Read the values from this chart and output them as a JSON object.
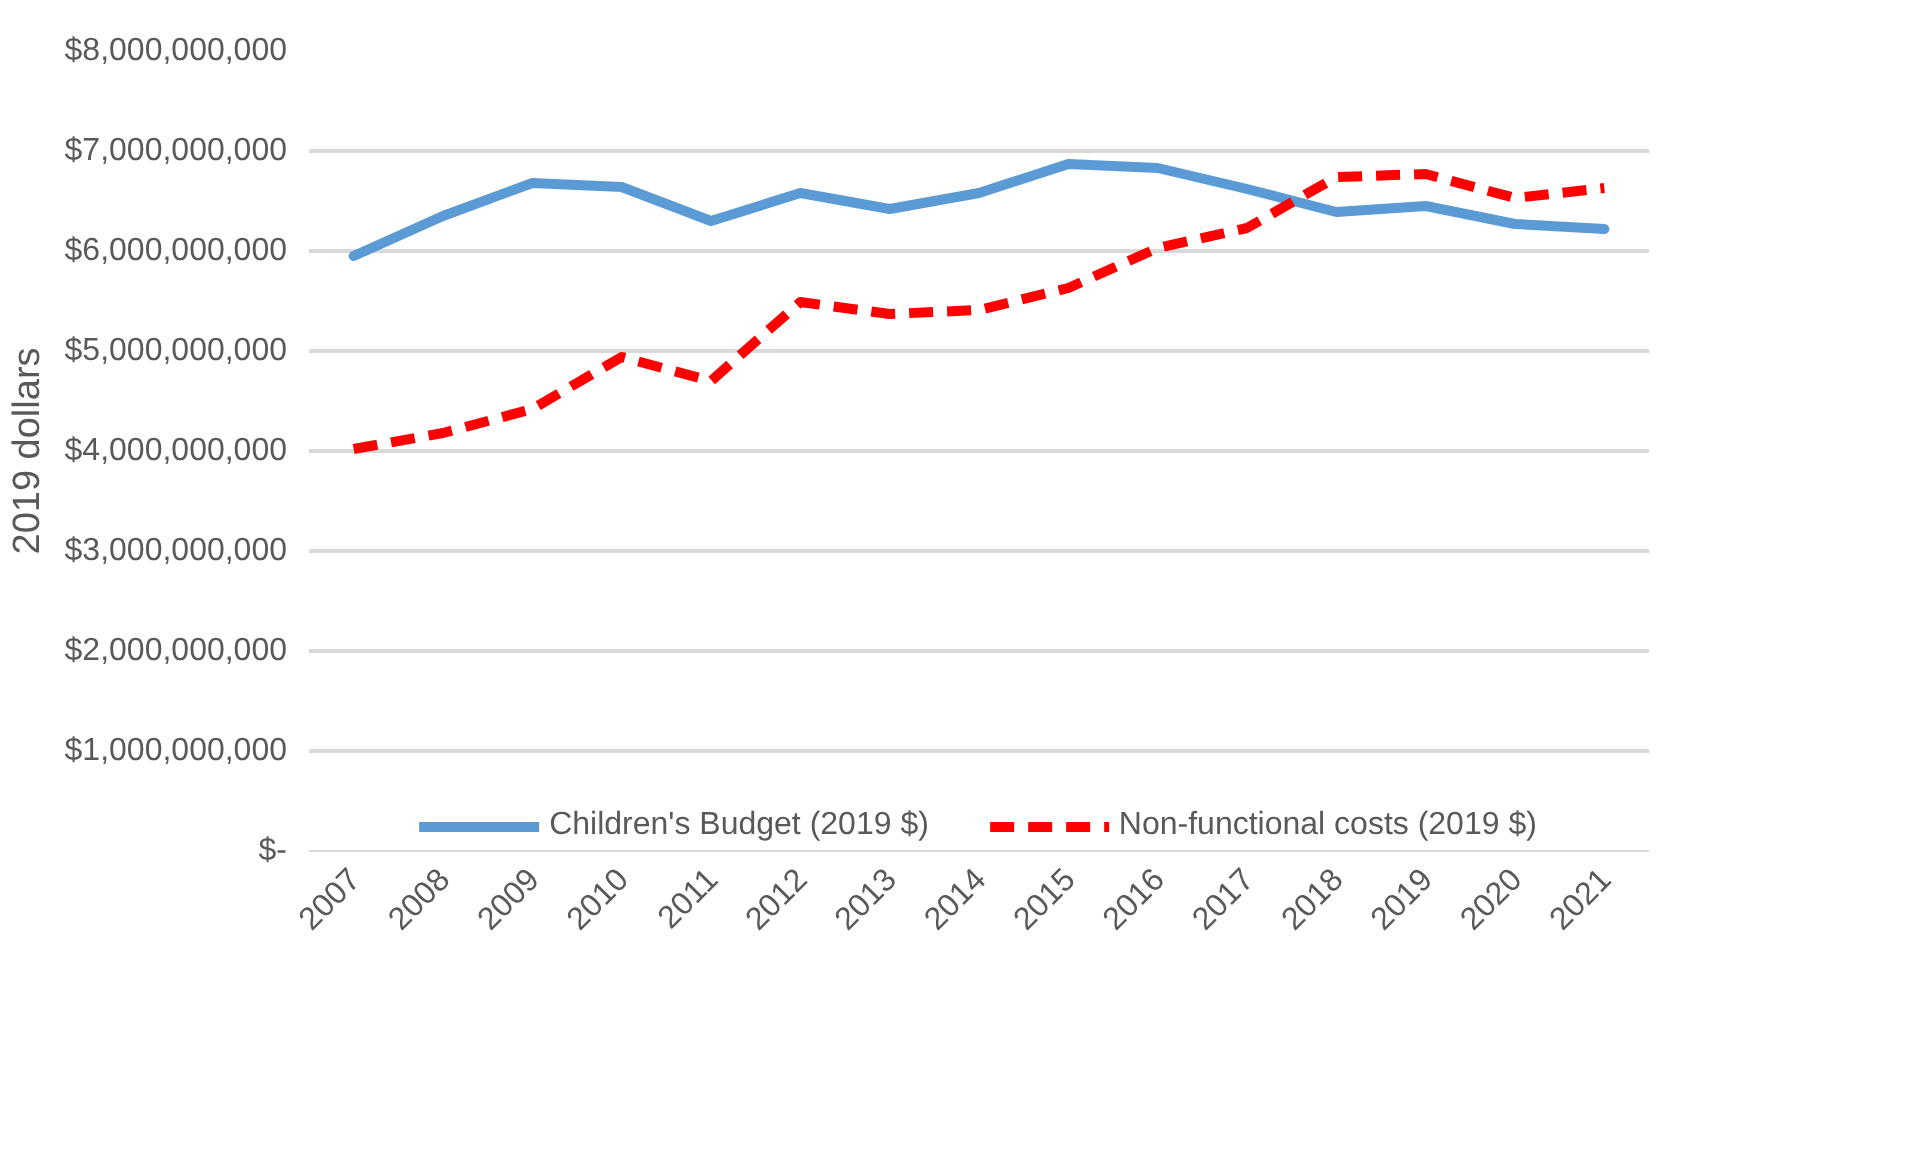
{
  "chart_data": {
    "type": "line",
    "ylabel": "2019 dollars",
    "categories": [
      "2007",
      "2008",
      "2009",
      "2010",
      "2011",
      "2012",
      "2013",
      "2014",
      "2015",
      "2016",
      "2017",
      "2018",
      "2019",
      "2020",
      "2021"
    ],
    "series": [
      {
        "name": "Children's Budget (2019 $)",
        "color": "#5b9bd5",
        "line_style": "solid",
        "values": [
          5950000000,
          6350000000,
          6680000000,
          6640000000,
          6300000000,
          6580000000,
          6420000000,
          6580000000,
          6870000000,
          6830000000,
          6620000000,
          6390000000,
          6450000000,
          6270000000,
          6220000000
        ]
      },
      {
        "name": "Non-functional costs (2019 $)",
        "color": "#ff0000",
        "line_style": "dashed",
        "values": [
          4020000000,
          4180000000,
          4420000000,
          4940000000,
          4700000000,
          5490000000,
          5370000000,
          5410000000,
          5630000000,
          6030000000,
          6230000000,
          6740000000,
          6770000000,
          6530000000,
          6630000000
        ]
      }
    ],
    "ylim": [
      0,
      8000000000
    ],
    "yticks": [
      {
        "value": 0,
        "label": "$-"
      },
      {
        "value": 1000000000,
        "label": "$1,000,000,000"
      },
      {
        "value": 2000000000,
        "label": "$2,000,000,000"
      },
      {
        "value": 3000000000,
        "label": "$3,000,000,000"
      },
      {
        "value": 4000000000,
        "label": "$4,000,000,000"
      },
      {
        "value": 5000000000,
        "label": "$5,000,000,000"
      },
      {
        "value": 6000000000,
        "label": "$6,000,000,000"
      },
      {
        "value": 7000000000,
        "label": "$7,000,000,000"
      },
      {
        "value": 8000000000,
        "label": "$8,000,000,000"
      }
    ],
    "grid": "y",
    "legend": "bottom",
    "marker": "none"
  }
}
